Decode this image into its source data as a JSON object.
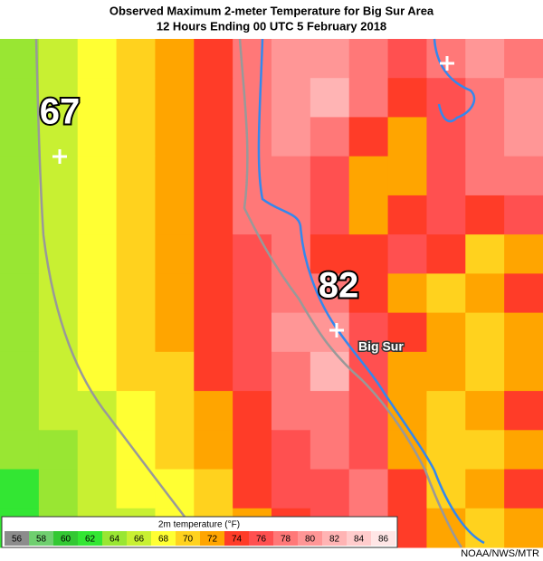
{
  "title": "Observed Maximum 2-meter Temperature for Big Sur Area",
  "subtitle": "12 Hours Ending 00 UTC 5 February 2018",
  "station_labels": [
    {
      "text": "67"
    },
    {
      "text": "82"
    }
  ],
  "place_label": "Big Sur",
  "credit": "NOAA/NWS/MTR",
  "colorbar": {
    "title": "2m temperature (°F)",
    "ticks": [
      56,
      58,
      60,
      62,
      64,
      66,
      68,
      70,
      72,
      74,
      76,
      78,
      80,
      82,
      84,
      86
    ],
    "colors": [
      "#8c8c8c",
      "#6fcf6f",
      "#33c833",
      "#33e633",
      "#99e633",
      "#c8f032",
      "#ffff33",
      "#ffd21e",
      "#ffa500",
      "#ff3c28",
      "#ff5050",
      "#ff7878",
      "#ff9696",
      "#ffb4b4",
      "#ffcccc",
      "#ffe6e6"
    ]
  },
  "grid": [
    [
      64,
      66,
      68,
      70,
      72,
      74,
      78,
      80,
      80,
      78,
      76,
      78,
      80,
      78
    ],
    [
      64,
      66,
      68,
      70,
      72,
      74,
      78,
      80,
      82,
      78,
      74,
      76,
      78,
      80
    ],
    [
      64,
      66,
      68,
      70,
      72,
      74,
      78,
      80,
      78,
      74,
      72,
      76,
      78,
      80
    ],
    [
      64,
      66,
      68,
      70,
      72,
      74,
      78,
      78,
      76,
      72,
      72,
      76,
      78,
      78
    ],
    [
      64,
      66,
      68,
      70,
      72,
      74,
      78,
      78,
      76,
      72,
      74,
      76,
      74,
      76
    ],
    [
      64,
      66,
      68,
      70,
      72,
      74,
      76,
      78,
      74,
      74,
      76,
      74,
      70,
      72
    ],
    [
      64,
      66,
      68,
      70,
      72,
      74,
      76,
      78,
      78,
      74,
      72,
      70,
      72,
      74
    ],
    [
      64,
      66,
      68,
      70,
      72,
      74,
      76,
      80,
      80,
      76,
      74,
      72,
      70,
      72
    ],
    [
      64,
      66,
      68,
      70,
      70,
      74,
      76,
      78,
      82,
      76,
      72,
      72,
      70,
      72
    ],
    [
      64,
      66,
      66,
      68,
      70,
      72,
      74,
      78,
      78,
      76,
      72,
      70,
      72,
      74
    ],
    [
      64,
      64,
      66,
      68,
      70,
      72,
      74,
      76,
      78,
      76,
      72,
      70,
      70,
      72
    ],
    [
      62,
      64,
      66,
      68,
      68,
      70,
      74,
      76,
      76,
      78,
      74,
      70,
      72,
      74
    ],
    [
      62,
      64,
      66,
      66,
      68,
      70,
      72,
      74,
      76,
      78,
      74,
      72,
      70,
      72
    ]
  ]
}
